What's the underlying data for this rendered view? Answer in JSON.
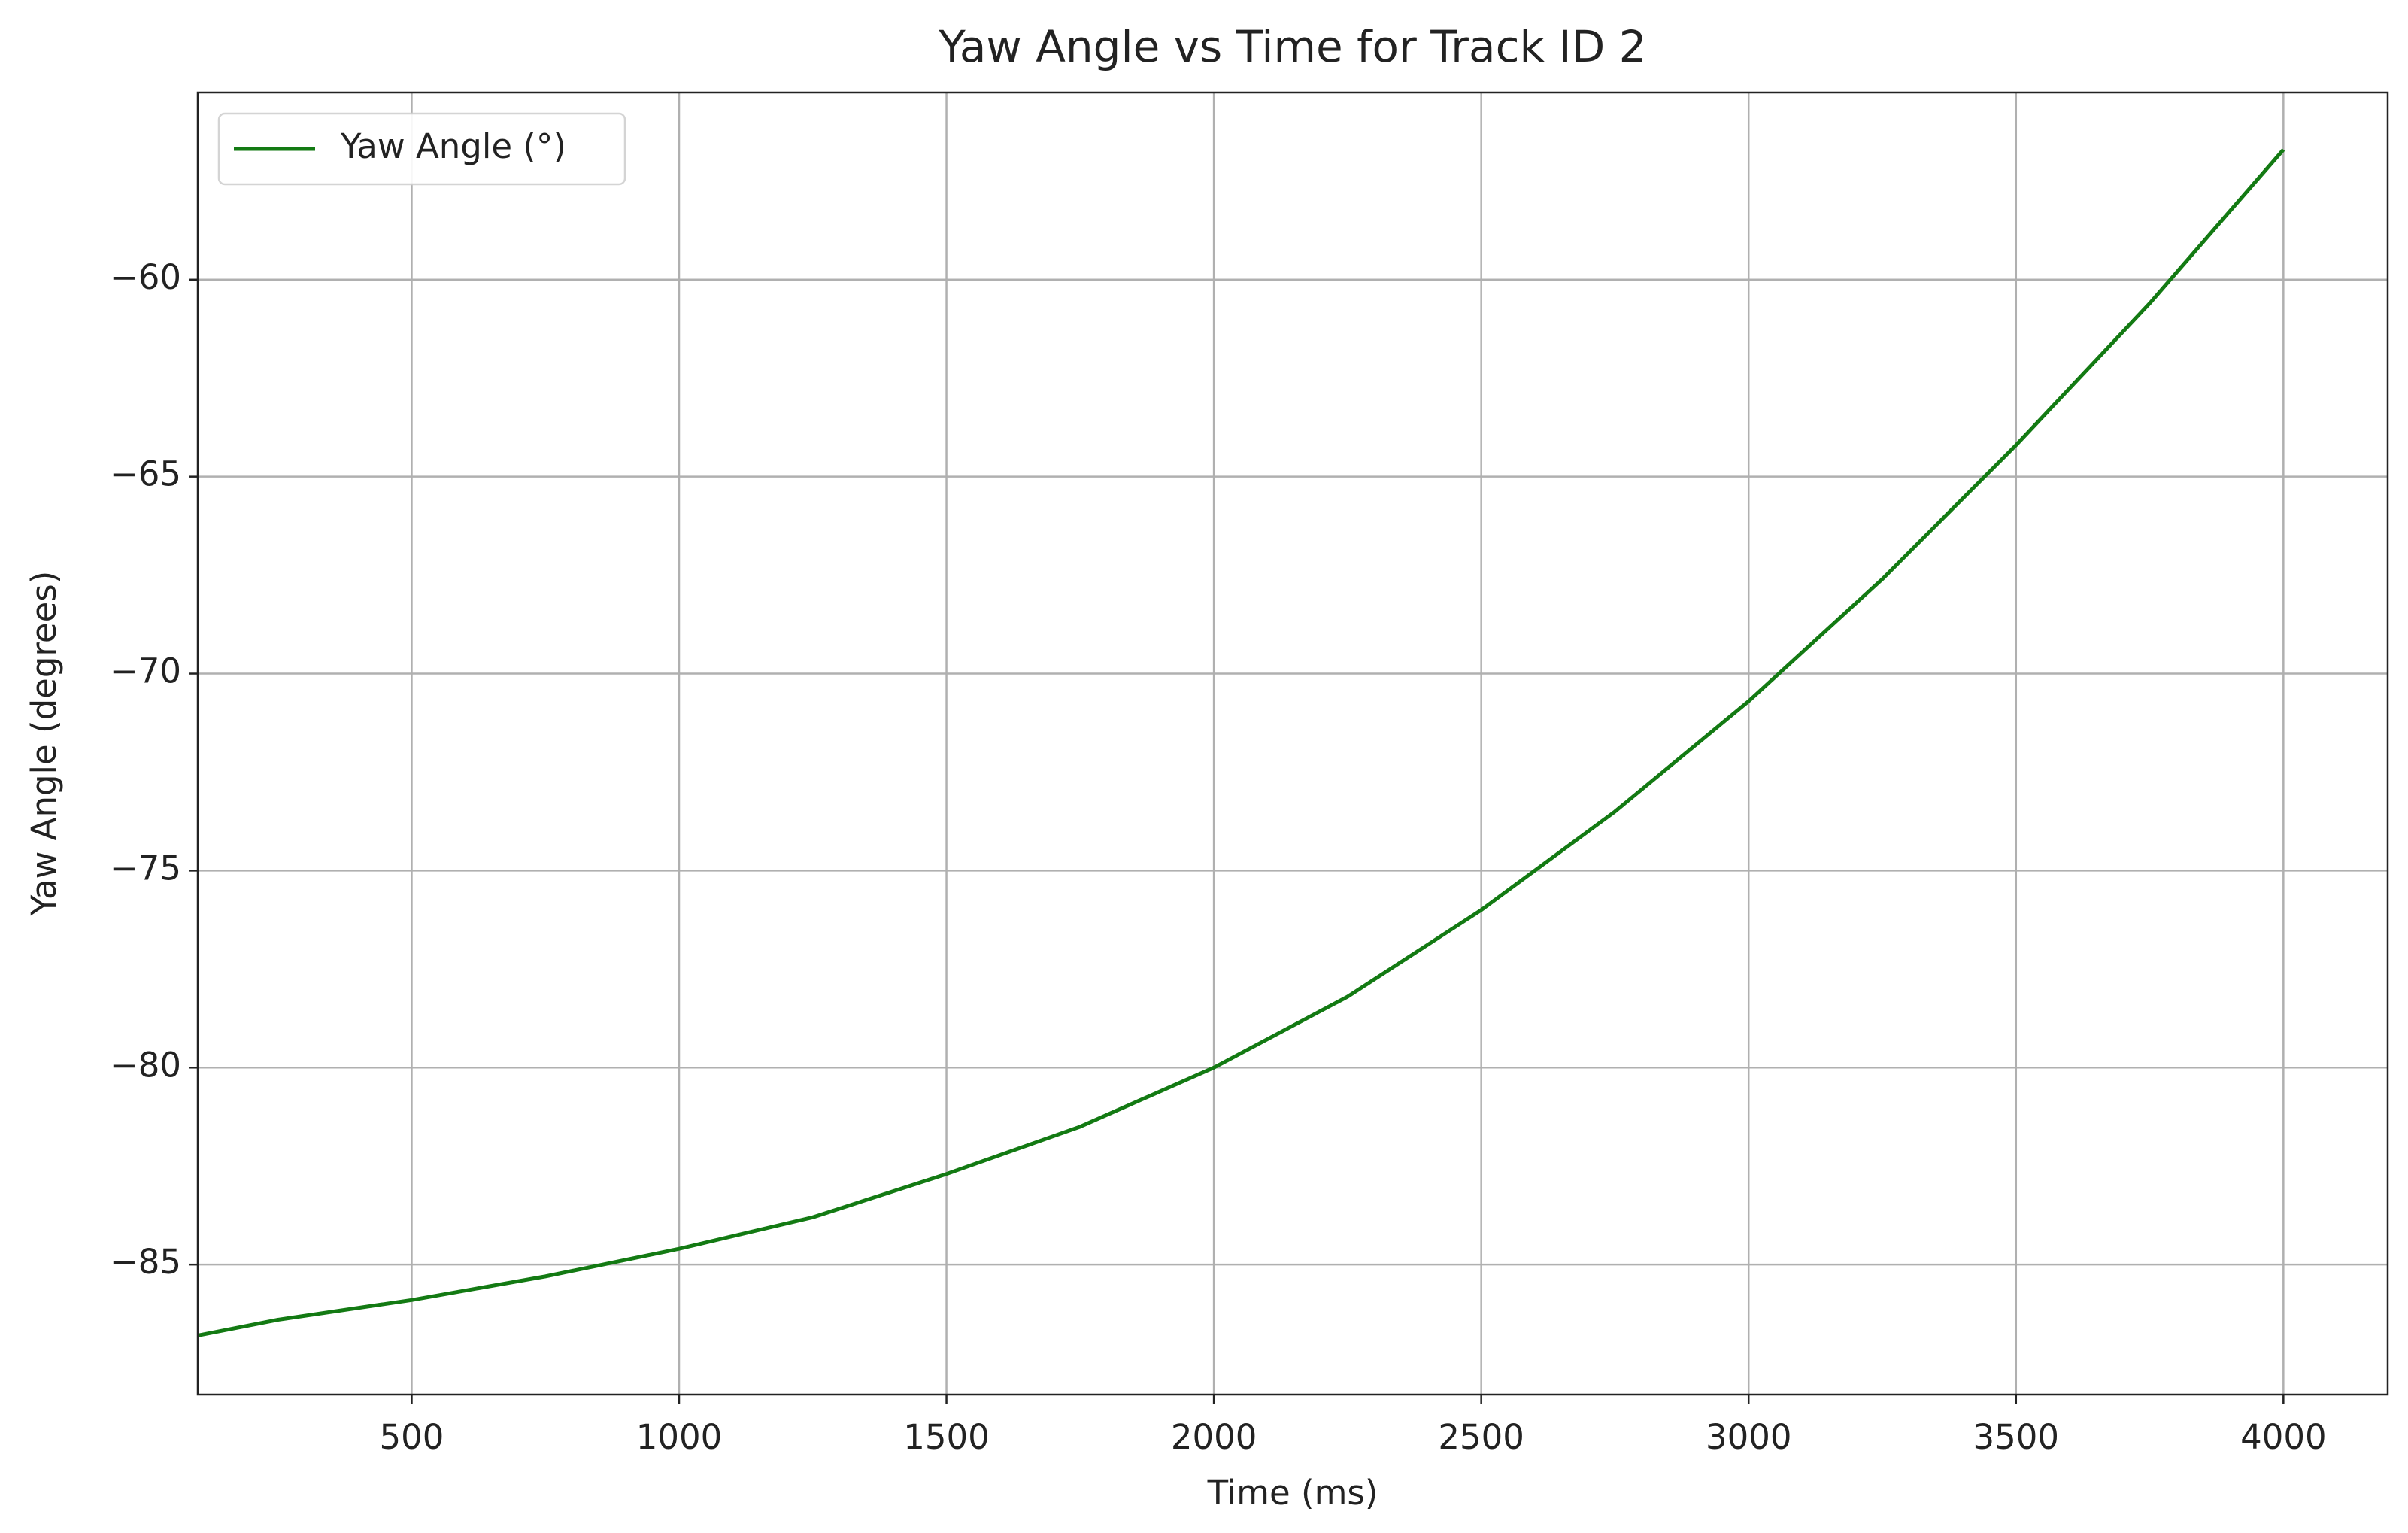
{
  "chart_data": {
    "type": "line",
    "title": "Yaw Angle vs Time for Track ID 2",
    "xlabel": "Time (ms)",
    "ylabel": "Yaw Angle (degrees)",
    "x": [
      100,
      250,
      500,
      750,
      1000,
      1250,
      1500,
      1750,
      2000,
      2250,
      2500,
      2750,
      3000,
      3250,
      3500,
      3750,
      4000
    ],
    "series": [
      {
        "name": "Yaw Angle (°)",
        "color": "#137a13",
        "values": [
          -86.8,
          -86.4,
          -85.9,
          -85.3,
          -84.6,
          -83.8,
          -82.7,
          -81.5,
          -80.0,
          -78.2,
          -76.0,
          -73.5,
          -70.7,
          -67.6,
          -64.2,
          -60.6,
          -56.7
        ]
      }
    ],
    "xlim": [
      100,
      4195
    ],
    "ylim": [
      -88.3,
      -55.25
    ],
    "xticks": [
      500,
      1000,
      1500,
      2000,
      2500,
      3000,
      3500,
      4000
    ],
    "yticks": [
      {
        "value": -85,
        "label": "−85"
      },
      {
        "value": -80,
        "label": "−80"
      },
      {
        "value": -75,
        "label": "−75"
      },
      {
        "value": -70,
        "label": "−70"
      },
      {
        "value": -65,
        "label": "−65"
      },
      {
        "value": -60,
        "label": "−60"
      }
    ],
    "grid": true,
    "legend": "upper left"
  }
}
